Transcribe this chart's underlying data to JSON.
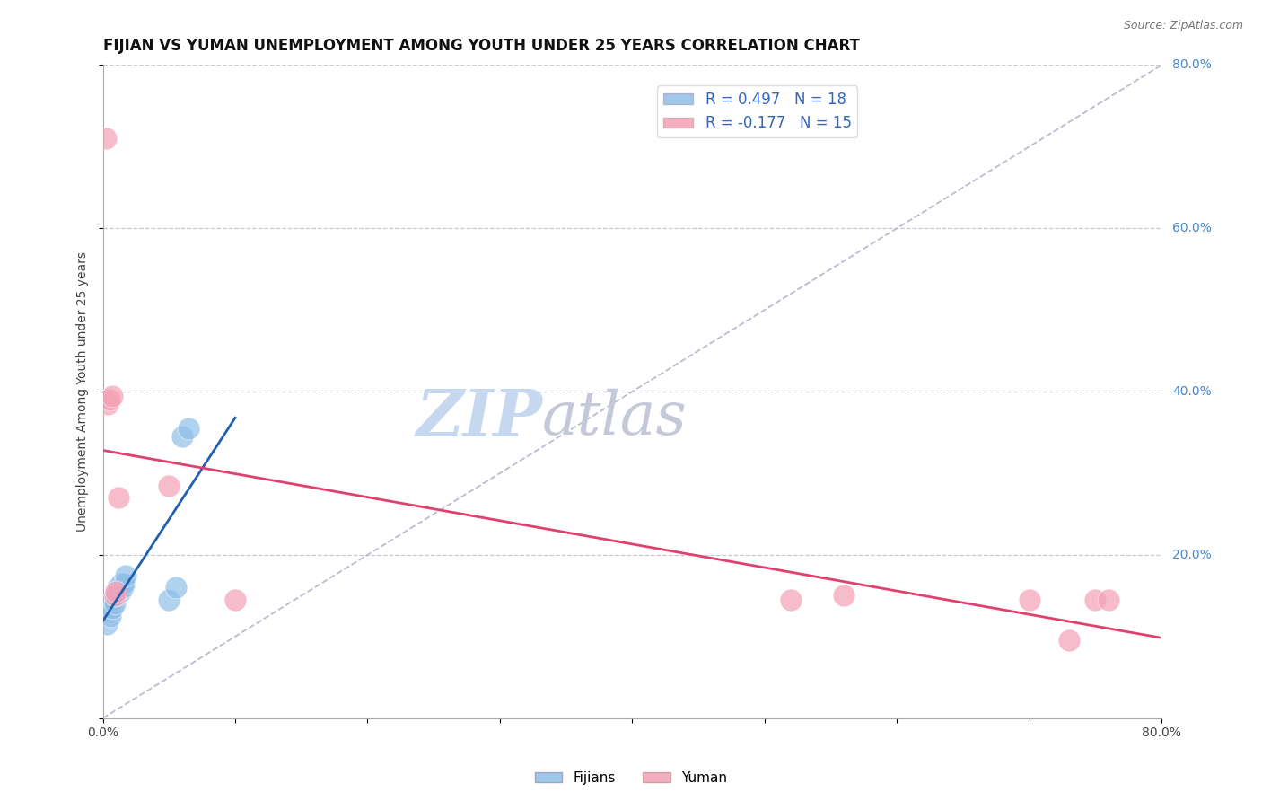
{
  "title": "FIJIAN VS YUMAN UNEMPLOYMENT AMONG YOUTH UNDER 25 YEARS CORRELATION CHART",
  "source": "Source: ZipAtlas.com",
  "ylabel": "Unemployment Among Youth under 25 years",
  "xlim": [
    0,
    0.8
  ],
  "ylim": [
    0,
    0.8
  ],
  "ytick_vals": [
    0.0,
    0.2,
    0.4,
    0.6,
    0.8
  ],
  "ytick_labels": [
    "",
    "20.0%",
    "40.0%",
    "60.0%",
    "80.0%"
  ],
  "background_color": "#ffffff",
  "grid_color": "#c8c8d0",
  "fijians_color": "#90bfe8",
  "yuman_color": "#f4a0b5",
  "fijians_line_color": "#2060b0",
  "yuman_line_color": "#e04070",
  "diag_line_color": "#b0b0c8",
  "legend_fijians_label": "R = 0.497   N = 18",
  "legend_yuman_label": "R = -0.177   N = 15",
  "fijians_x": [
    0.003,
    0.005,
    0.006,
    0.007,
    0.008,
    0.009,
    0.01,
    0.011,
    0.012,
    0.013,
    0.014,
    0.015,
    0.016,
    0.017,
    0.05,
    0.055,
    0.06,
    0.065
  ],
  "fijians_y": [
    0.115,
    0.13,
    0.125,
    0.135,
    0.145,
    0.14,
    0.15,
    0.16,
    0.155,
    0.155,
    0.165,
    0.16,
    0.165,
    0.175,
    0.145,
    0.16,
    0.345,
    0.355
  ],
  "yuman_x": [
    0.002,
    0.004,
    0.005,
    0.007,
    0.009,
    0.01,
    0.012,
    0.05,
    0.1,
    0.52,
    0.56,
    0.7,
    0.73,
    0.75,
    0.76
  ],
  "yuman_y": [
    0.71,
    0.385,
    0.39,
    0.395,
    0.15,
    0.155,
    0.27,
    0.285,
    0.145,
    0.145,
    0.15,
    0.145,
    0.095,
    0.145,
    0.145
  ],
  "title_fontsize": 12,
  "axis_label_fontsize": 10,
  "tick_fontsize": 10,
  "legend_fontsize": 12,
  "watermark_zip_color": "#c5d8f0",
  "watermark_atlas_color": "#c5c8d8",
  "watermark_fontsize": 52
}
